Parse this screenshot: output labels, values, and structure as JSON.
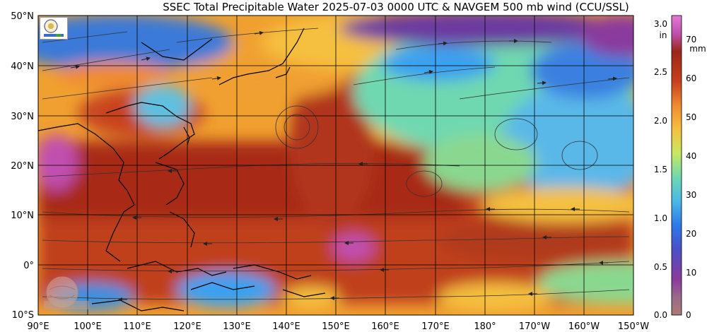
{
  "title": "SSEC Total Precipitable Water  2025-07-03 0000 UTC & NAVGEM 500 mb wind (CCU/SSL)",
  "latitudes": [
    "50°N",
    "40°N",
    "30°N",
    "20°N",
    "10°N",
    "0°",
    "10°S"
  ],
  "longitudes": [
    "90°E",
    "100°E",
    "110°E",
    "120°E",
    "130°E",
    "140°E",
    "150°E",
    "160°E",
    "170°E",
    "180°",
    "170°W",
    "160°W",
    "150°W"
  ],
  "colorbar": {
    "inches_unit": "in",
    "mm_unit": "mm",
    "inches_ticks": [
      "3.0",
      "2.5",
      "2.0",
      "1.5",
      "1.0",
      "0.5",
      "0.0"
    ],
    "mm_ticks": [
      "70",
      "60",
      "50",
      "40",
      "30",
      "20",
      "10",
      "0"
    ],
    "colors": [
      "#a97c72",
      "#8a3a9c",
      "#2b55c8",
      "#3aa0f0",
      "#5fd0d6",
      "#7fe08a",
      "#c8e860",
      "#f5c040",
      "#f0903a",
      "#c8401e",
      "#a02818",
      "#d060d0"
    ]
  },
  "logos": {
    "ssec": "SSEC",
    "cimss": "CIMSS"
  },
  "colors": {
    "moist": "#b03a20",
    "dry": "#3a7ad8",
    "very_dry": "#7a3aa0",
    "medium": "#f0a030",
    "low": "#70d8b0"
  }
}
